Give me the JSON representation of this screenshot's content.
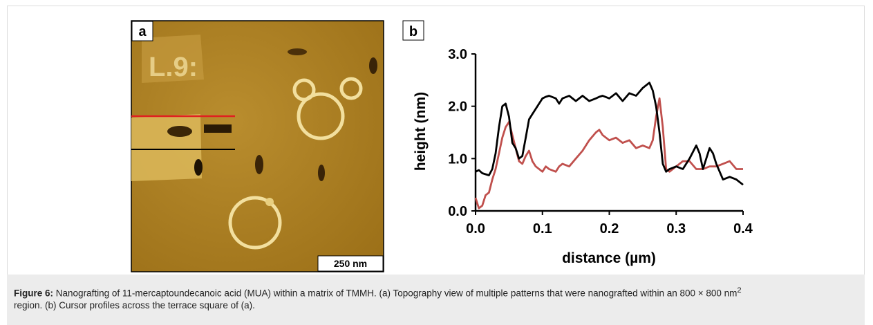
{
  "figure": {
    "panel_a": "a",
    "panel_b": "b",
    "scale_bar": "250 nm"
  },
  "chart_data": {
    "type": "line",
    "xlabel": "distance (µm)",
    "ylabel": "height (nm)",
    "xlim": [
      0,
      0.4
    ],
    "ylim": [
      0,
      3
    ],
    "xticks": [
      {
        "value": 0,
        "label": "0.0"
      },
      0.1,
      0.2,
      0.3,
      0.4
    ],
    "yticks": [
      {
        "value": 0,
        "label": "0.0"
      },
      {
        "value": 1,
        "label": "1.0"
      },
      {
        "value": 2,
        "label": "2.0"
      },
      {
        "value": 3,
        "label": "3.0"
      }
    ],
    "x": [
      0,
      0.005,
      0.01,
      0.015,
      0.02,
      0.025,
      0.03,
      0.035,
      0.04,
      0.045,
      0.05,
      0.055,
      0.06,
      0.065,
      0.07,
      0.075,
      0.08,
      0.085,
      0.09,
      0.1,
      0.105,
      0.11,
      0.12,
      0.125,
      0.13,
      0.14,
      0.15,
      0.16,
      0.17,
      0.18,
      0.185,
      0.19,
      0.2,
      0.21,
      0.22,
      0.23,
      0.24,
      0.25,
      0.26,
      0.265,
      0.27,
      0.275,
      0.28,
      0.285,
      0.29,
      0.3,
      0.31,
      0.32,
      0.33,
      0.335,
      0.34,
      0.35,
      0.355,
      0.36,
      0.37,
      0.38,
      0.39,
      0.4
    ],
    "series": [
      {
        "color": "#000000",
        "values": [
          0.75,
          0.78,
          0.72,
          0.7,
          0.68,
          0.8,
          1.1,
          1.6,
          2.0,
          2.05,
          1.8,
          1.3,
          1.2,
          1.0,
          1.05,
          1.4,
          1.75,
          1.85,
          1.95,
          2.15,
          2.18,
          2.2,
          2.15,
          2.05,
          2.15,
          2.2,
          2.1,
          2.2,
          2.1,
          2.15,
          2.18,
          2.2,
          2.15,
          2.25,
          2.1,
          2.25,
          2.2,
          2.35,
          2.45,
          2.3,
          2.0,
          1.5,
          0.9,
          0.75,
          0.8,
          0.85,
          0.8,
          1.0,
          1.25,
          1.1,
          0.8,
          1.2,
          1.1,
          0.9,
          0.6,
          0.65,
          0.6,
          0.5
        ]
      },
      {
        "color": "#c0504d",
        "values": [
          0.25,
          0.05,
          0.1,
          0.3,
          0.35,
          0.6,
          0.8,
          1.1,
          1.4,
          1.6,
          1.7,
          1.45,
          1.2,
          0.95,
          0.9,
          1.05,
          1.15,
          0.95,
          0.85,
          0.75,
          0.85,
          0.8,
          0.75,
          0.85,
          0.9,
          0.85,
          1.0,
          1.15,
          1.35,
          1.5,
          1.55,
          1.45,
          1.35,
          1.4,
          1.3,
          1.35,
          1.2,
          1.25,
          1.2,
          1.35,
          1.8,
          2.15,
          1.6,
          0.8,
          0.75,
          0.85,
          0.95,
          0.95,
          0.8,
          0.8,
          0.8,
          0.85,
          0.85,
          0.85,
          0.9,
          0.95,
          0.8,
          0.8
        ]
      }
    ]
  },
  "caption": {
    "label": "Figure 6:",
    "text": "Nanografting of 11-mercaptoundecanoic acid (MUA) within a matrix of TMMH. (a) Topography view of multiple patterns that were nanografted within an 800 × 800 nm",
    "superscript": "2",
    "text_end": " region. (b) Cursor profiles across the terrace square of (a)."
  }
}
